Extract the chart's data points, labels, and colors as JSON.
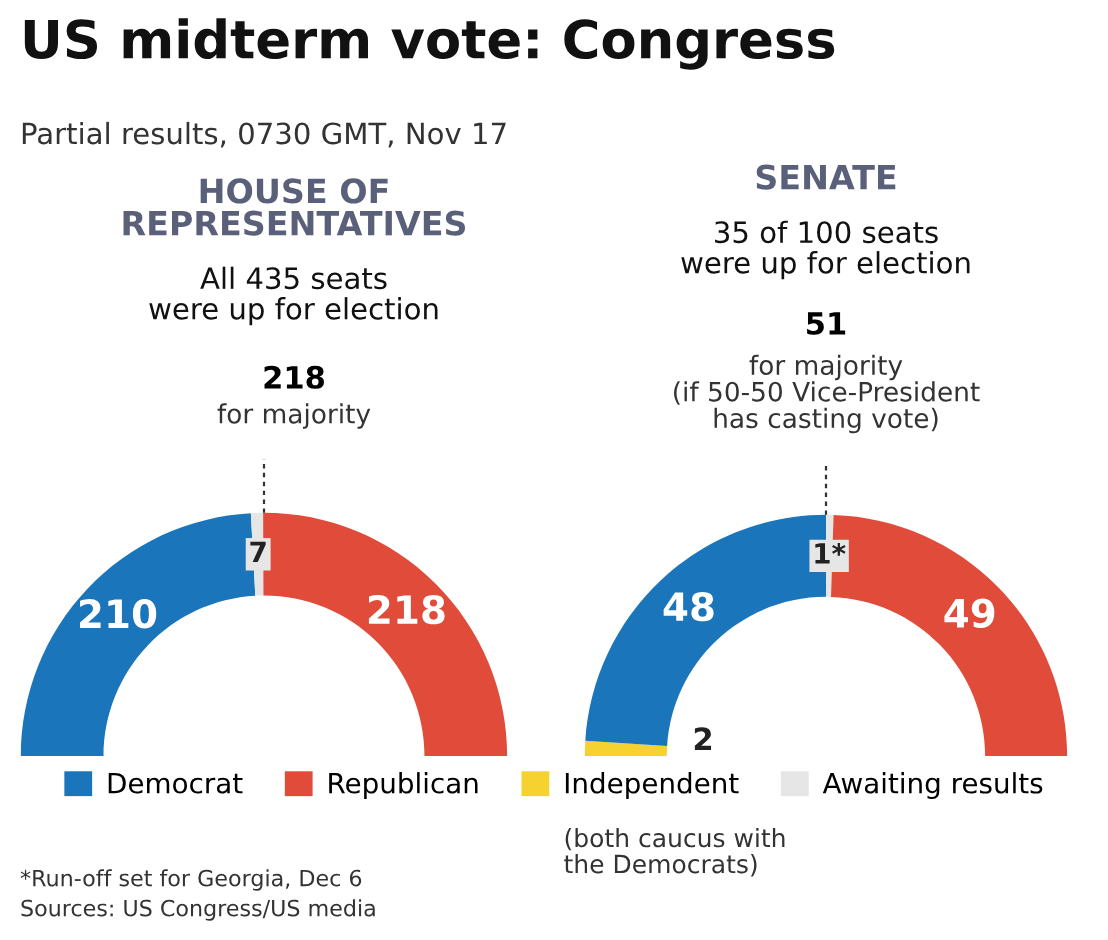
{
  "chart_data": [
    {
      "type": "donut",
      "title": "HOUSE OF\nREPRESENTATIVES",
      "subtitle": "All 435 seats\nwere up for election",
      "categories": [
        null,
        null,
        null
      ],
      "values": [
        210,
        7,
        218
      ],
      "colors": [
        "#1a75bb",
        "#e6e6e6",
        "#e04b3a"
      ],
      "value_labels": [
        "210",
        "7",
        "218"
      ],
      "annotations": [
        "US midterm vote: Congress",
        "Partial results, 0730 GMT, Nov 17",
        "218",
        "for majority",
        "*Run-off set for Georgia, Dec 6",
        "Sources: US Congress/US media"
      ]
    },
    {
      "type": "donut",
      "title": "SENATE",
      "subtitle": "35 of 100 seats\nwere up for election",
      "categories": [
        "Independent",
        "Democrat",
        "Awaiting results",
        "Republican"
      ],
      "values": [
        2,
        48,
        1,
        49
      ],
      "colors": [
        "#f5d22f",
        "#1a75bb",
        "#e6e6e6",
        "#e04b3a"
      ],
      "value_labels": [
        "2",
        "48",
        "1*",
        "49"
      ],
      "legend": "bottom",
      "annotations": [
        "51",
        "for majority\n(if 50-50 Vice-President\nhas casting vote)",
        "(both caucus with\nthe Democrats)"
      ]
    }
  ]
}
